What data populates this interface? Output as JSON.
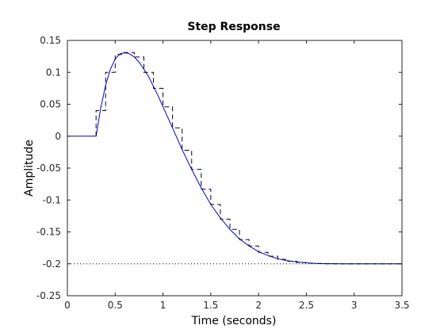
{
  "chart_data": {
    "type": "line",
    "title": "Step Response",
    "xlabel": "Time (seconds)",
    "ylabel": "Amplitude",
    "xlim": [
      0,
      3.5
    ],
    "ylim": [
      -0.25,
      0.15
    ],
    "xticks": [
      0,
      0.5,
      1,
      1.5,
      2,
      2.5,
      3,
      3.5
    ],
    "xtick_labels": [
      "0",
      "0.5",
      "1",
      "1.5",
      "2",
      "2.5",
      "3",
      "3.5"
    ],
    "yticks": [
      -0.25,
      -0.2,
      -0.15,
      -0.1,
      -0.05,
      0,
      0.05,
      0.1,
      0.15
    ],
    "ytick_labels": [
      "-0.25",
      "-0.2",
      "-0.15",
      "-0.1",
      "-0.05",
      "0",
      "0.05",
      "0.1",
      "0.15"
    ],
    "grid": false,
    "colors": {
      "continuous": "#0000cc",
      "discrete": "#000033",
      "reference": "#000000"
    },
    "series": [
      {
        "style": "solid",
        "x": [
          0,
          0.3,
          0.3,
          0.35,
          0.4,
          0.45,
          0.5,
          0.55,
          0.6,
          0.65,
          0.7,
          0.75,
          0.8,
          0.85,
          0.9,
          0.95,
          1.0,
          1.1,
          1.2,
          1.3,
          1.4,
          1.5,
          1.6,
          1.7,
          1.8,
          1.9,
          2.0,
          2.1,
          2.2,
          2.3,
          2.4,
          2.5,
          2.6,
          2.7,
          2.8,
          2.9,
          3.0,
          3.1,
          3.2,
          3.3,
          3.4,
          3.5
        ],
        "y": [
          0,
          0,
          0,
          0.045,
          0.08,
          0.105,
          0.121,
          0.129,
          0.131,
          0.129,
          0.124,
          0.116,
          0.105,
          0.093,
          0.078,
          0.063,
          0.046,
          0.013,
          -0.021,
          -0.052,
          -0.081,
          -0.107,
          -0.128,
          -0.146,
          -0.161,
          -0.172,
          -0.181,
          -0.187,
          -0.192,
          -0.195,
          -0.197,
          -0.1985,
          -0.1993,
          -0.1997,
          -0.1999,
          -0.2,
          -0.2,
          -0.2,
          -0.2,
          -0.2,
          -0.2,
          -0.2
        ]
      },
      {
        "style": "dashed-staircase",
        "x": [
          0.3,
          0.4,
          0.5,
          0.6,
          0.7,
          0.8,
          0.9,
          1.0,
          1.1,
          1.2,
          1.3,
          1.4,
          1.5,
          1.6,
          1.7,
          1.8,
          1.9,
          2.0,
          2.1,
          2.2,
          2.3,
          2.4,
          2.5,
          2.6,
          2.7,
          2.8,
          2.9,
          3.0,
          3.1,
          3.2
        ],
        "y": [
          0.04,
          0.1,
          0.128,
          0.131,
          0.124,
          0.1,
          0.075,
          0.046,
          0.013,
          -0.022,
          -0.052,
          -0.083,
          -0.107,
          -0.13,
          -0.146,
          -0.162,
          -0.172,
          -0.182,
          -0.188,
          -0.193,
          -0.196,
          -0.198,
          -0.199,
          -0.1995,
          -0.2,
          -0.2,
          -0.2,
          -0.2,
          -0.2,
          -0.2
        ]
      }
    ],
    "reference_line": {
      "y": -0.2,
      "style": "dotted"
    }
  }
}
